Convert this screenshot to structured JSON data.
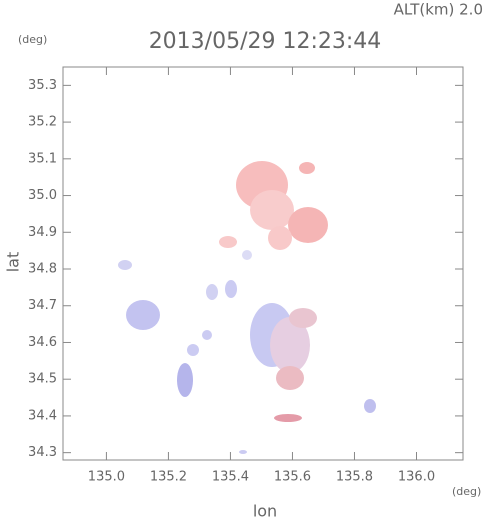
{
  "chart_data": {
    "type": "map",
    "title": "2013/05/29 12:23:44",
    "altitude_label": "ALT(km) 2.0",
    "x_label": "lon",
    "y_label": "lat",
    "x_unit": "(deg)",
    "y_unit": "(deg)",
    "xlim": [
      134.86,
      136.15
    ],
    "ylim": [
      34.28,
      35.35
    ],
    "xticks": [
      {
        "value": 135.0,
        "label": "135.0"
      },
      135.2,
      135.4,
      135.6,
      135.8,
      {
        "value": 136.0,
        "label": "136.0"
      }
    ],
    "yticks": [
      34.3,
      34.4,
      34.5,
      34.6,
      34.7,
      34.8,
      34.9,
      {
        "value": 35.0,
        "label": "35.0"
      },
      35.1,
      35.2,
      35.3
    ]
  }
}
